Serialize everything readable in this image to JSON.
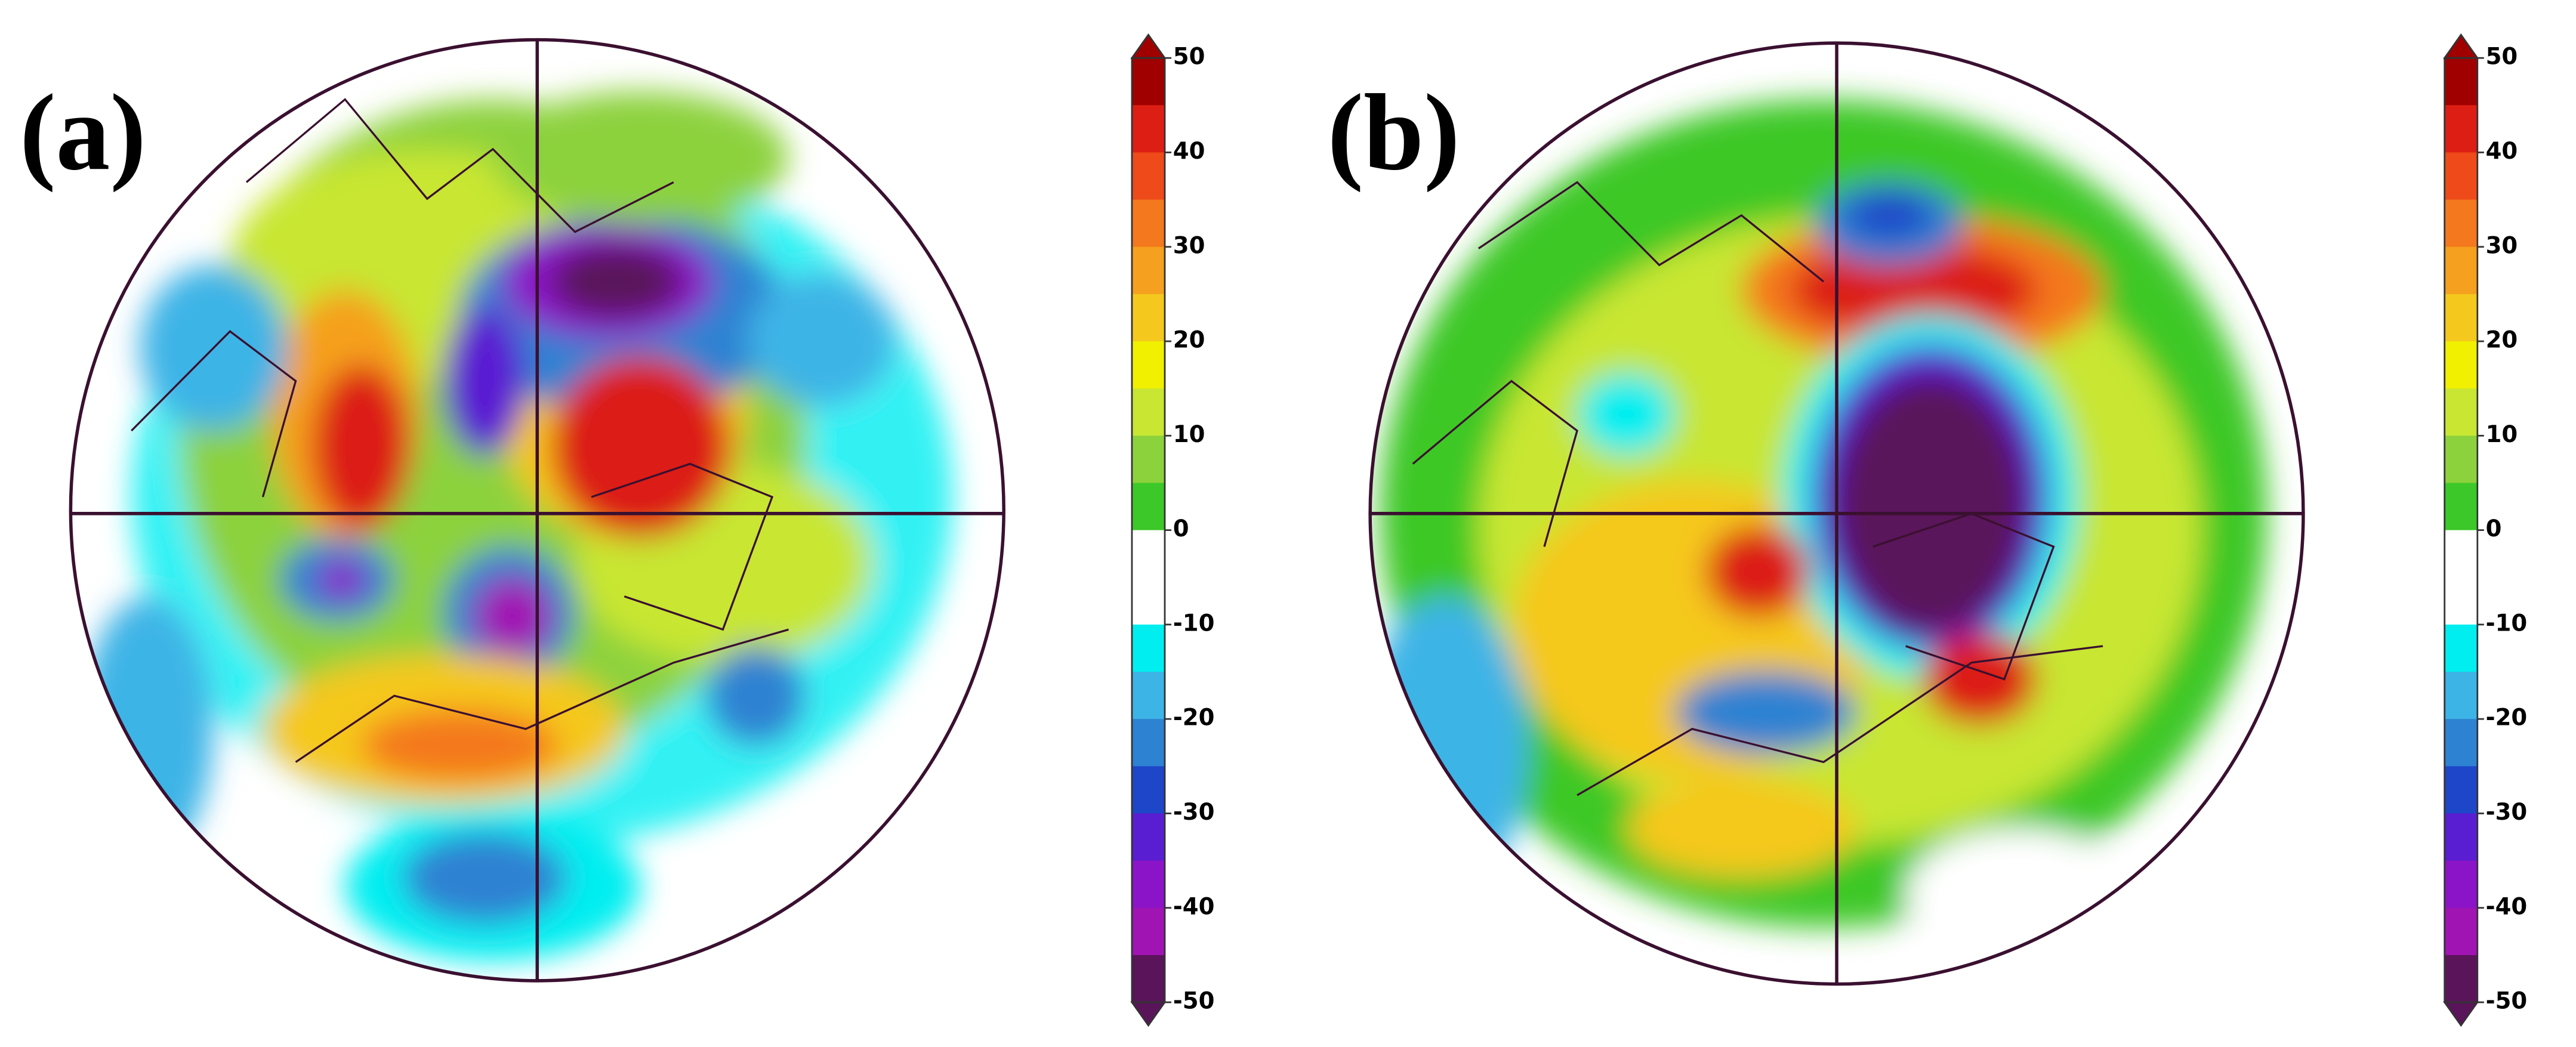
{
  "panels": [
    {
      "label": "(a)",
      "colorbar": {
        "ticks": [
          50,
          40,
          30,
          20,
          10,
          0,
          -10,
          -20,
          -30,
          -40,
          -50
        ]
      }
    },
    {
      "label": "(b)",
      "colorbar": {
        "ticks": [
          50,
          40,
          30,
          20,
          10,
          0,
          -10,
          -20,
          -30,
          -40,
          -50
        ]
      }
    }
  ],
  "colorbar_colors": [
    "#a00000",
    "#dc1e14",
    "#ee4a1a",
    "#f4781e",
    "#f5a01e",
    "#f5c81e",
    "#f0f000",
    "#c8e632",
    "#8cd23c",
    "#3cc828",
    "#ffffff",
    "#ffffff",
    "#00eef0",
    "#3cb4e6",
    "#2d82d2",
    "#1e46c8",
    "#5a1ed2",
    "#8c14c8",
    "#a014b4",
    "#5a145a"
  ]
}
